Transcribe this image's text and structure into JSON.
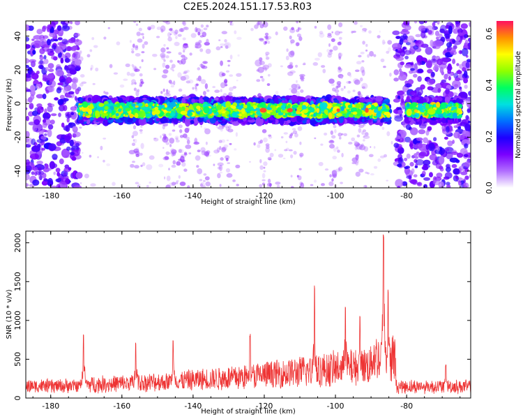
{
  "title": "C2E5.2024.151.17.53.R03",
  "chart_data": [
    {
      "type": "heatmap",
      "xlabel": "Height of straight line (km)",
      "ylabel": "Frequency (Hz)",
      "xlim": [
        -187,
        -62
      ],
      "ylim": [
        -50,
        49
      ],
      "xticks": [
        -180,
        -160,
        -140,
        -120,
        -100,
        -80
      ],
      "yticks": [
        -40,
        -20,
        0,
        20,
        40
      ],
      "colorbar": {
        "label": "Normalized spectral amplitude",
        "range": [
          0.0,
          0.65
        ],
        "ticks": [
          0.0,
          0.2,
          0.4,
          0.6
        ],
        "colors": [
          "#ffffff",
          "#b26fff",
          "#7a00ff",
          "#1e00ff",
          "#0070ff",
          "#00e0e0",
          "#00ff60",
          "#90ff00",
          "#ffff00",
          "#ff9000",
          "#ff1060"
        ]
      },
      "band": {
        "center_hz": -4,
        "half_width_hz": 7,
        "x_from": -172,
        "x_to": -85,
        "gap_from": -85,
        "gap_to": -81,
        "second_from": -80,
        "second_to": -65
      },
      "noise_regions": [
        [
          -187,
          -172
        ],
        [
          -83,
          -62
        ]
      ],
      "grid": false
    },
    {
      "type": "line",
      "xlabel": "Height of straight line (km)",
      "ylabel": "SNR (10 * v/v)",
      "xlim": [
        -187,
        -62
      ],
      "ylim": [
        0,
        2150
      ],
      "xticks": [
        -180,
        -160,
        -140,
        -120,
        -100,
        -80
      ],
      "yticks": [
        0,
        500,
        1000,
        1500,
        2000
      ],
      "color": "#ee3333",
      "peaks": [
        {
          "x": -170.8,
          "y": 850
        },
        {
          "x": -156.1,
          "y": 720
        },
        {
          "x": -145.6,
          "y": 760
        },
        {
          "x": -124.0,
          "y": 830
        },
        {
          "x": -105.9,
          "y": 1470
        },
        {
          "x": -97.2,
          "y": 1210
        },
        {
          "x": -93.1,
          "y": 1090
        },
        {
          "x": -86.5,
          "y": 2150
        },
        {
          "x": -85.2,
          "y": 1400
        },
        {
          "x": -69.0,
          "y": 430
        }
      ],
      "grid": false
    }
  ]
}
